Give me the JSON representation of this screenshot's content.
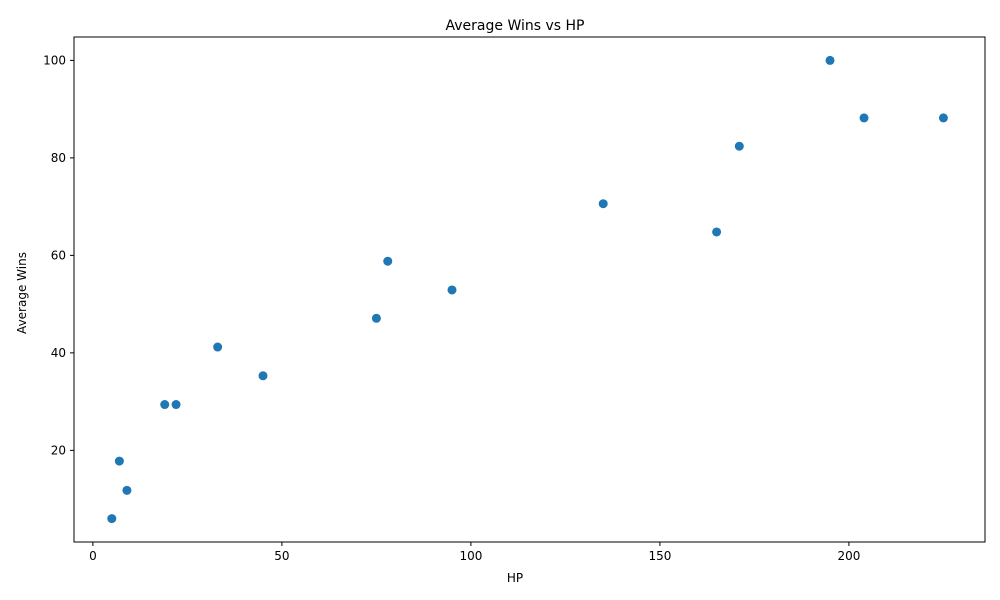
{
  "chart_data": {
    "type": "scatter",
    "title": "Average Wins vs HP",
    "xlabel": "HP",
    "ylabel": "Average Wins",
    "xlim": [
      -5,
      236
    ],
    "ylim": [
      1.2,
      104.8
    ],
    "xticks": [
      0,
      50,
      100,
      150,
      200
    ],
    "yticks": [
      20,
      40,
      60,
      80,
      100
    ],
    "grid": false,
    "marker_color": "#1f77b4",
    "points": [
      {
        "x": 5,
        "y": 6.0
      },
      {
        "x": 7,
        "y": 17.8
      },
      {
        "x": 9,
        "y": 11.8
      },
      {
        "x": 19,
        "y": 29.4
      },
      {
        "x": 22,
        "y": 29.4
      },
      {
        "x": 33,
        "y": 41.2
      },
      {
        "x": 45,
        "y": 35.3
      },
      {
        "x": 75,
        "y": 47.1
      },
      {
        "x": 78,
        "y": 58.8
      },
      {
        "x": 95,
        "y": 52.9
      },
      {
        "x": 135,
        "y": 70.6
      },
      {
        "x": 165,
        "y": 64.8
      },
      {
        "x": 171,
        "y": 82.4
      },
      {
        "x": 195,
        "y": 100.0
      },
      {
        "x": 204,
        "y": 88.2
      },
      {
        "x": 225,
        "y": 88.2
      }
    ]
  }
}
